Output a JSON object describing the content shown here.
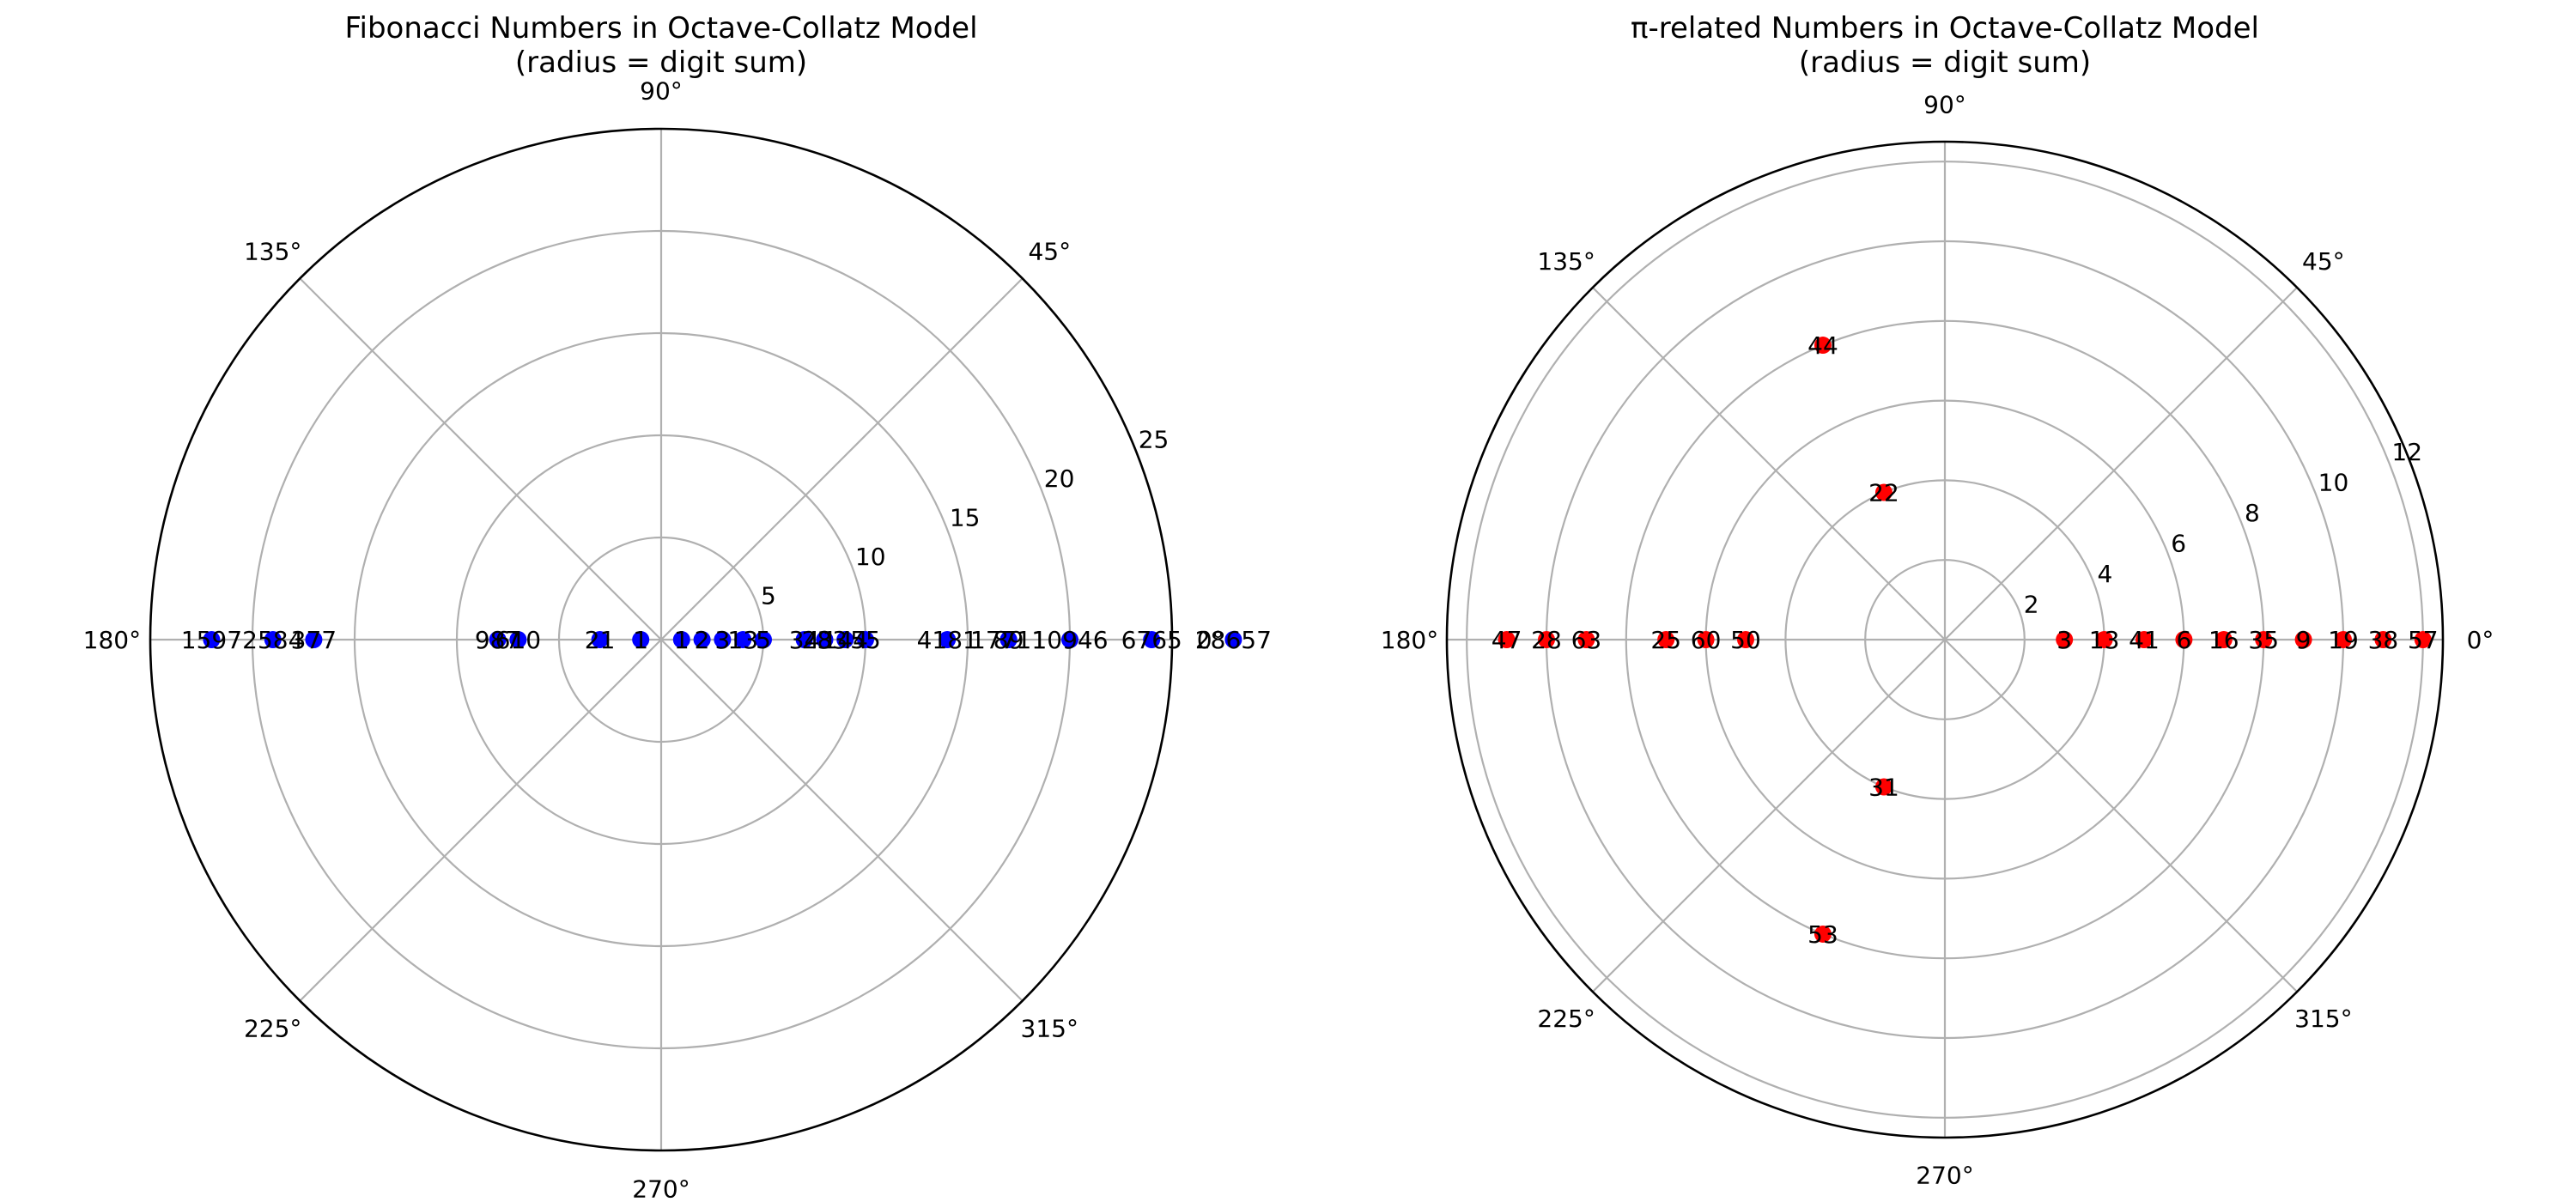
{
  "chart_data": [
    {
      "type": "scatter",
      "polar": true,
      "title": "Fibonacci Numbers in Octave-Collatz Model",
      "subtitle": "(radius = digit sum)",
      "color": "#0000ff",
      "r_ticks": [
        "5",
        "10",
        "15",
        "20",
        "25"
      ],
      "r_tick_values": [
        5,
        10,
        15,
        20,
        25
      ],
      "rlim": [
        0,
        25
      ],
      "theta_ticks": [
        "0°",
        "45°",
        "90°",
        "135°",
        "180°",
        "225°",
        "270°",
        "315°"
      ],
      "grid": true,
      "points": [
        {
          "label": "1",
          "theta": 0,
          "r": 1
        },
        {
          "label": "2",
          "theta": 0,
          "r": 2
        },
        {
          "label": "3",
          "theta": 0,
          "r": 3
        },
        {
          "label": "5",
          "theta": 0,
          "r": 5
        },
        {
          "label": "8",
          "theta": 0,
          "r": 8
        },
        {
          "label": "13",
          "theta": 0,
          "r": 4
        },
        {
          "label": "34",
          "theta": 0,
          "r": 7
        },
        {
          "label": "55",
          "theta": 0,
          "r": 10
        },
        {
          "label": "89",
          "theta": 0,
          "r": 17
        },
        {
          "label": "144",
          "theta": 0,
          "r": 9
        },
        {
          "label": "233",
          "theta": 0,
          "r": 8
        },
        {
          "label": "4181",
          "theta": 0,
          "r": 14
        },
        {
          "label": "6765",
          "theta": 0,
          "r": 24
        },
        {
          "label": "10946",
          "theta": 0,
          "r": 20
        },
        {
          "label": "17711",
          "theta": 0,
          "r": 17
        },
        {
          "label": "28657",
          "theta": 0,
          "r": 28
        },
        {
          "label": "1",
          "theta": 180,
          "r": 1
        },
        {
          "label": "21",
          "theta": 180,
          "r": 3
        },
        {
          "label": "610",
          "theta": 180,
          "r": 7
        },
        {
          "label": "987",
          "theta": 180,
          "r": 8
        },
        {
          "label": "2584",
          "theta": 180,
          "r": 19
        },
        {
          "label": "377",
          "theta": 180,
          "r": 17
        },
        {
          "label": "1597",
          "theta": 180,
          "r": 22
        }
      ]
    },
    {
      "type": "scatter",
      "polar": true,
      "title": "π-related Numbers in Octave-Collatz Model",
      "subtitle": "(radius = digit sum)",
      "color": "#ff0000",
      "r_ticks": [
        "2",
        "4",
        "6",
        "8",
        "10",
        "12"
      ],
      "r_tick_values": [
        2,
        4,
        6,
        8,
        10,
        12
      ],
      "rlim": [
        0,
        12.5
      ],
      "theta_ticks": [
        "0°",
        "45°",
        "90°",
        "135°",
        "180°",
        "225°",
        "270°",
        "315°"
      ],
      "grid": true,
      "points": [
        {
          "label": "3",
          "theta": 0,
          "r": 3
        },
        {
          "label": "13",
          "theta": 0,
          "r": 4
        },
        {
          "label": "41",
          "theta": 0,
          "r": 5
        },
        {
          "label": "6",
          "theta": 0,
          "r": 6
        },
        {
          "label": "16",
          "theta": 0,
          "r": 7
        },
        {
          "label": "35",
          "theta": 0,
          "r": 8
        },
        {
          "label": "9",
          "theta": 0,
          "r": 9
        },
        {
          "label": "19",
          "theta": 0,
          "r": 10
        },
        {
          "label": "38",
          "theta": 0,
          "r": 11
        },
        {
          "label": "57",
          "theta": 0,
          "r": 12
        },
        {
          "label": "47",
          "theta": 180,
          "r": 11
        },
        {
          "label": "28",
          "theta": 180,
          "r": 10
        },
        {
          "label": "63",
          "theta": 180,
          "r": 9
        },
        {
          "label": "25",
          "theta": 180,
          "r": 7
        },
        {
          "label": "60",
          "theta": 180,
          "r": 6
        },
        {
          "label": "50",
          "theta": 180,
          "r": 5
        },
        {
          "label": "44",
          "theta": 112.5,
          "r": 8
        },
        {
          "label": "22",
          "theta": 112.5,
          "r": 4
        },
        {
          "label": "31",
          "theta": 247.5,
          "r": 4
        },
        {
          "label": "53",
          "theta": 247.5,
          "r": 8
        }
      ]
    }
  ]
}
